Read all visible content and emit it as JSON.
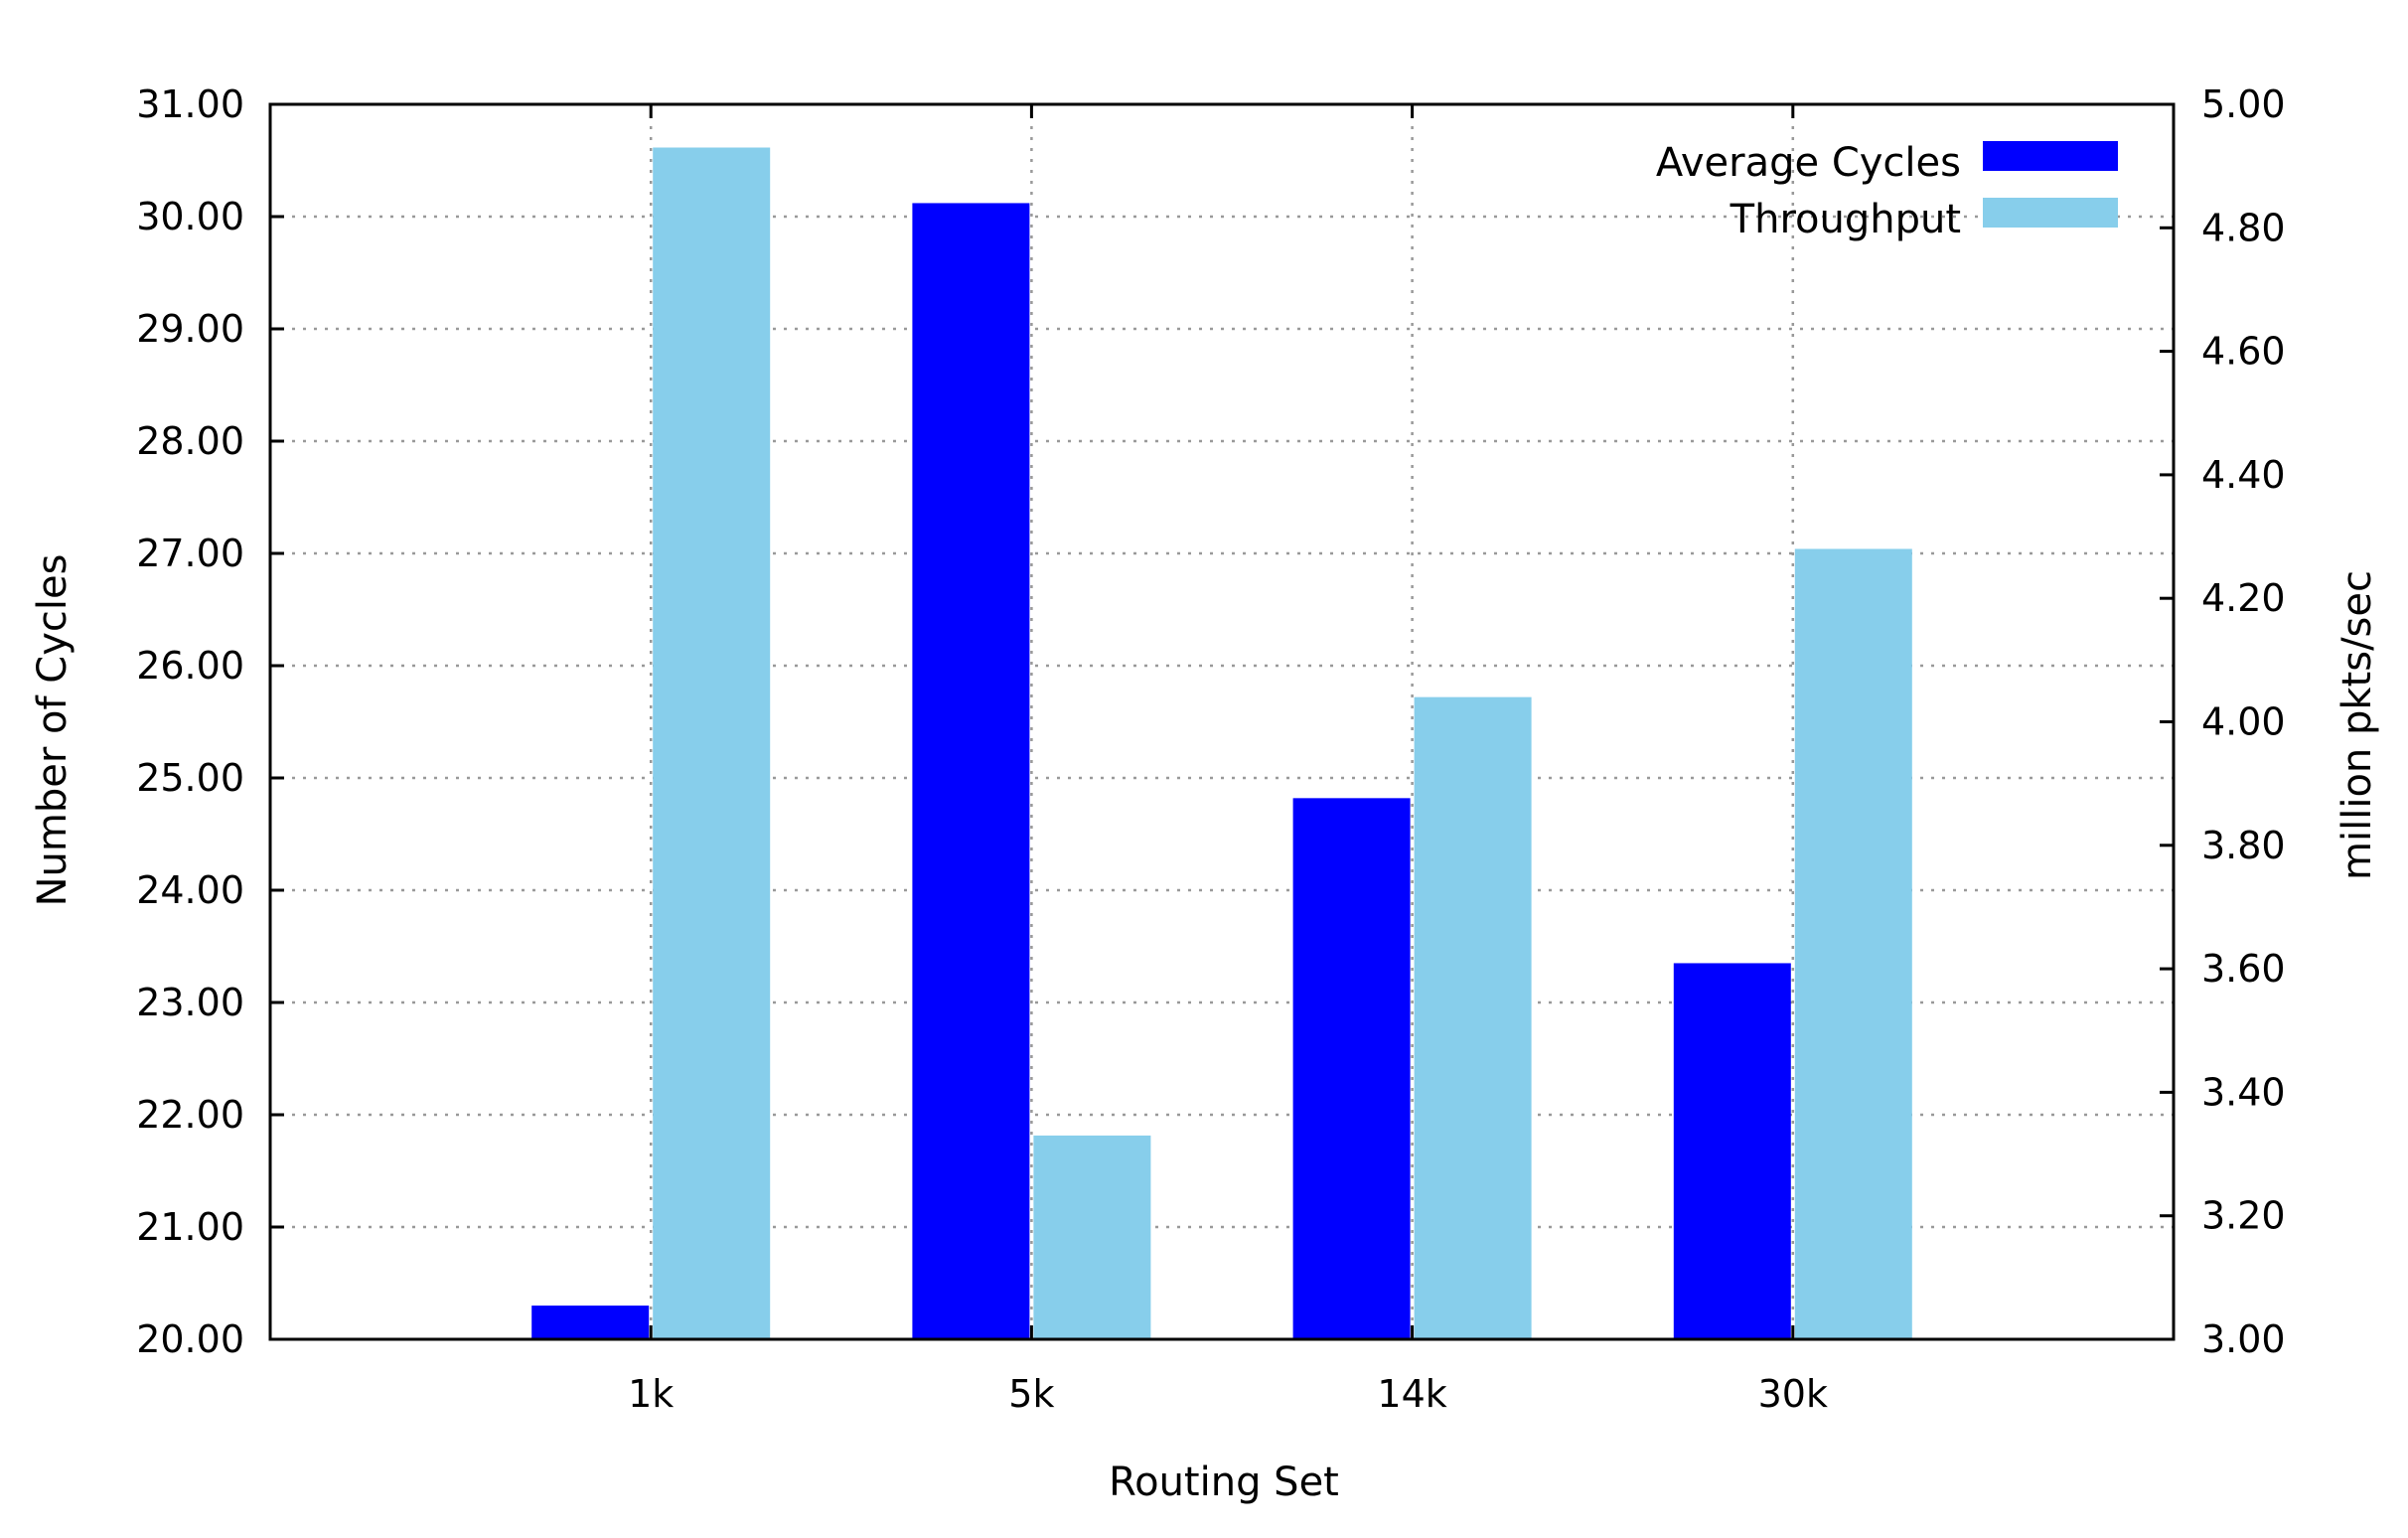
{
  "chart_data": {
    "type": "bar",
    "title": "",
    "xlabel": "Routing Set",
    "ylabel": "Number of Cycles",
    "y2label": "million pkts/sec",
    "categories": [
      "1k",
      "5k",
      "14k",
      "30k"
    ],
    "series": [
      {
        "name": "Average Cycles",
        "axis": "left",
        "color": "#0000ff",
        "values": [
          20.3,
          30.12,
          24.82,
          23.35
        ]
      },
      {
        "name": "Throughput",
        "axis": "right",
        "color": "#87ceeb",
        "values": [
          4.93,
          3.33,
          4.04,
          4.28
        ]
      }
    ],
    "ylim": [
      20,
      31
    ],
    "y2lim": [
      3.0,
      5.0
    ],
    "yticks": [
      "20.00",
      "21.00",
      "22.00",
      "23.00",
      "24.00",
      "25.00",
      "26.00",
      "27.00",
      "28.00",
      "29.00",
      "30.00",
      "31.00"
    ],
    "y2ticks": [
      "3.00",
      "3.20",
      "3.40",
      "3.60",
      "3.80",
      "4.00",
      "4.20",
      "4.40",
      "4.60",
      "4.80",
      "5.00"
    ],
    "grid": true,
    "legend_position": "top-right"
  }
}
